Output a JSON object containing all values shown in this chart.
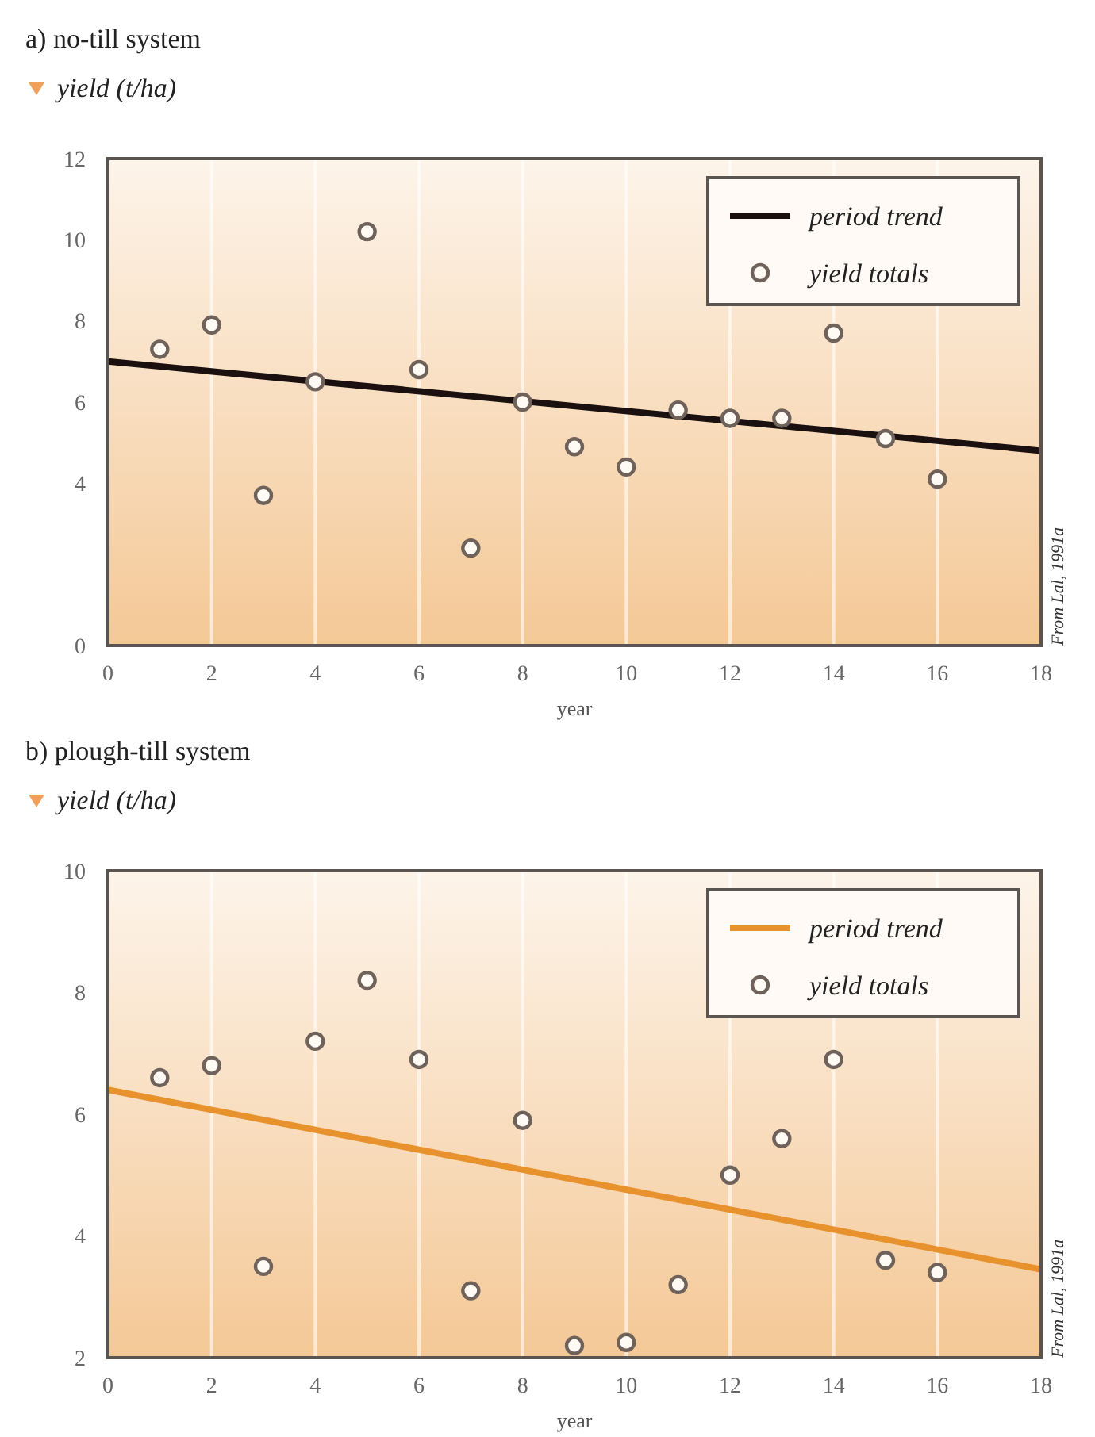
{
  "chart_data": [
    {
      "type": "scatter",
      "title": "a) no-till system",
      "ylabel": "yield (t/ha)",
      "xlabel": "year",
      "xlim": [
        0,
        18
      ],
      "xticks": [
        0,
        2,
        4,
        6,
        8,
        10,
        12,
        14,
        16,
        18
      ],
      "ylim": [
        0,
        12
      ],
      "yticks": [
        0,
        4,
        6,
        8,
        10,
        12
      ],
      "grid": "x",
      "legend": "top right",
      "annotations": [
        "From Lal, 1991a"
      ],
      "series": [
        {
          "name": "period trend",
          "type": "line",
          "color": "#1a1010",
          "x": [
            0,
            18
          ],
          "values": [
            7.0,
            4.8
          ],
          "marker": "none"
        },
        {
          "name": "yield totals",
          "type": "scatter",
          "color": "#6e625a",
          "marker": "circle",
          "x": [
            1,
            2,
            3,
            4,
            5,
            6,
            7,
            8,
            9,
            10,
            11,
            12,
            13,
            14,
            15,
            16
          ],
          "values": [
            7.3,
            7.9,
            3.7,
            6.5,
            10.2,
            6.8,
            2.4,
            6.0,
            4.9,
            4.4,
            5.8,
            5.6,
            5.6,
            7.7,
            5.1,
            4.1
          ]
        }
      ]
    },
    {
      "type": "scatter",
      "title": "b) plough-till system",
      "ylabel": "yield (t/ha)",
      "xlabel": "year",
      "xlim": [
        0,
        18
      ],
      "xticks": [
        0,
        2,
        4,
        6,
        8,
        10,
        12,
        14,
        16,
        18
      ],
      "ylim": [
        2,
        10
      ],
      "yticks": [
        2,
        4,
        6,
        8,
        10
      ],
      "grid": "x",
      "legend": "top right",
      "annotations": [
        "From Lal, 1991a"
      ],
      "series": [
        {
          "name": "period trend",
          "type": "line",
          "color": "#e8922e",
          "x": [
            0,
            18
          ],
          "values": [
            6.4,
            3.45
          ],
          "marker": "none"
        },
        {
          "name": "yield totals",
          "type": "scatter",
          "color": "#6e625a",
          "marker": "circle",
          "x": [
            1,
            2,
            3,
            4,
            5,
            6,
            7,
            8,
            9,
            10,
            11,
            12,
            13,
            14,
            15,
            16
          ],
          "values": [
            6.6,
            6.8,
            3.5,
            7.2,
            8.2,
            6.9,
            3.1,
            5.9,
            2.2,
            2.25,
            3.2,
            5.0,
            5.6,
            6.9,
            3.6,
            3.4
          ]
        }
      ]
    }
  ]
}
